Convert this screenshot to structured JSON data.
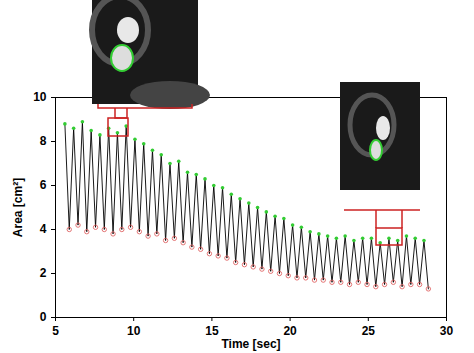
{
  "chart_data": {
    "type": "line",
    "x_label": "Time [sec]",
    "y_label": "Area [cm²]",
    "xlim": [
      5,
      30
    ],
    "xticks": [
      5,
      10,
      15,
      20,
      25,
      30
    ],
    "ylim": [
      0,
      10
    ],
    "yticks": [
      0,
      2,
      4,
      6,
      8,
      10
    ],
    "grid": false,
    "series": [
      {
        "type": "line",
        "color": "#000000",
        "line_style": "solid",
        "x": [
          5.6,
          5.88,
          6.16,
          6.44,
          6.72,
          7.0,
          7.28,
          7.56,
          7.84,
          8.12,
          8.4,
          8.68,
          8.96,
          9.24,
          9.52,
          9.8,
          10.08,
          10.36,
          10.64,
          10.92,
          11.2,
          11.48,
          11.76,
          12.04,
          12.32,
          12.6,
          12.88,
          13.16,
          13.44,
          13.72,
          14.0,
          14.28,
          14.56,
          14.84,
          15.12,
          15.4,
          15.68,
          15.96,
          16.24,
          16.52,
          16.8,
          17.08,
          17.36,
          17.64,
          17.92,
          18.2,
          18.48,
          18.76,
          19.04,
          19.32,
          19.6,
          19.88,
          20.16,
          20.44,
          20.72,
          21.0,
          21.28,
          21.56,
          21.84,
          22.12,
          22.4,
          22.68,
          22.96,
          23.24,
          23.52,
          23.8,
          24.08,
          24.36,
          24.64,
          24.92,
          25.2,
          25.48,
          25.76,
          26.04,
          26.32,
          26.6,
          26.88,
          27.16,
          27.44,
          27.72,
          28.0,
          28.28,
          28.56,
          28.84
        ],
        "values": [
          8.8,
          4.0,
          8.6,
          4.2,
          8.9,
          3.9,
          8.5,
          4.1,
          8.3,
          4.0,
          8.6,
          3.8,
          8.4,
          4.0,
          8.7,
          4.1,
          8.1,
          3.9,
          7.9,
          3.7,
          7.6,
          3.8,
          7.4,
          3.5,
          7.0,
          3.6,
          7.1,
          3.4,
          6.6,
          3.2,
          6.5,
          3.1,
          6.3,
          2.9,
          6.0,
          2.8,
          5.9,
          2.7,
          5.6,
          2.5,
          5.4,
          2.4,
          5.2,
          2.3,
          5.0,
          2.2,
          4.8,
          2.1,
          4.6,
          2.0,
          4.5,
          1.9,
          4.2,
          1.8,
          4.1,
          1.8,
          3.9,
          1.7,
          3.8,
          1.7,
          3.7,
          1.6,
          3.6,
          1.6,
          3.7,
          1.5,
          3.5,
          1.6,
          3.6,
          1.5,
          3.6,
          1.4,
          3.4,
          1.5,
          3.6,
          1.6,
          3.5,
          1.4,
          3.7,
          1.5,
          3.6,
          1.5,
          3.5,
          1.3
        ]
      },
      {
        "type": "scatter",
        "color": "#33cc33",
        "marker": "dot",
        "x": [
          5.6,
          6.16,
          6.72,
          7.28,
          7.84,
          8.4,
          8.96,
          9.52,
          10.08,
          10.64,
          11.2,
          11.76,
          12.32,
          12.88,
          13.44,
          14.0,
          14.56,
          15.12,
          15.68,
          16.24,
          16.8,
          17.36,
          17.92,
          18.48,
          19.04,
          19.6,
          20.16,
          20.72,
          21.28,
          21.84,
          22.4,
          22.96,
          23.52,
          24.08,
          24.64,
          25.2,
          25.76,
          26.32,
          26.88,
          27.44,
          28.0,
          28.56
        ],
        "values": [
          8.8,
          8.6,
          8.9,
          8.5,
          8.3,
          8.6,
          8.4,
          8.7,
          8.1,
          7.9,
          7.6,
          7.4,
          7.0,
          7.1,
          6.6,
          6.5,
          6.3,
          6.0,
          5.9,
          5.6,
          5.4,
          5.2,
          5.0,
          4.8,
          4.6,
          4.5,
          4.2,
          4.1,
          3.9,
          3.8,
          3.7,
          3.6,
          3.7,
          3.5,
          3.6,
          3.6,
          3.4,
          3.6,
          3.5,
          3.7,
          3.6,
          3.5
        ]
      },
      {
        "type": "scatter",
        "color": "#e06666",
        "marker": "circle",
        "x": [
          5.88,
          6.44,
          7.0,
          7.56,
          8.12,
          8.68,
          9.24,
          9.8,
          10.36,
          10.92,
          11.48,
          12.04,
          12.6,
          13.16,
          13.72,
          14.28,
          14.84,
          15.4,
          15.96,
          16.52,
          17.08,
          17.64,
          18.2,
          18.76,
          19.32,
          19.88,
          20.44,
          21.0,
          21.56,
          22.12,
          22.68,
          23.24,
          23.8,
          24.36,
          24.92,
          25.48,
          26.04,
          26.6,
          27.16,
          27.72,
          28.28,
          28.84
        ],
        "values": [
          4.0,
          4.2,
          3.9,
          4.1,
          4.0,
          3.8,
          4.0,
          4.1,
          3.9,
          3.7,
          3.8,
          3.5,
          3.6,
          3.4,
          3.2,
          3.1,
          2.9,
          2.8,
          2.7,
          2.5,
          2.4,
          2.3,
          2.2,
          2.1,
          2.0,
          1.9,
          1.8,
          1.8,
          1.7,
          1.7,
          1.6,
          1.6,
          1.5,
          1.6,
          1.5,
          1.4,
          1.5,
          1.6,
          1.4,
          1.5,
          1.5,
          1.3
        ]
      }
    ]
  }
}
